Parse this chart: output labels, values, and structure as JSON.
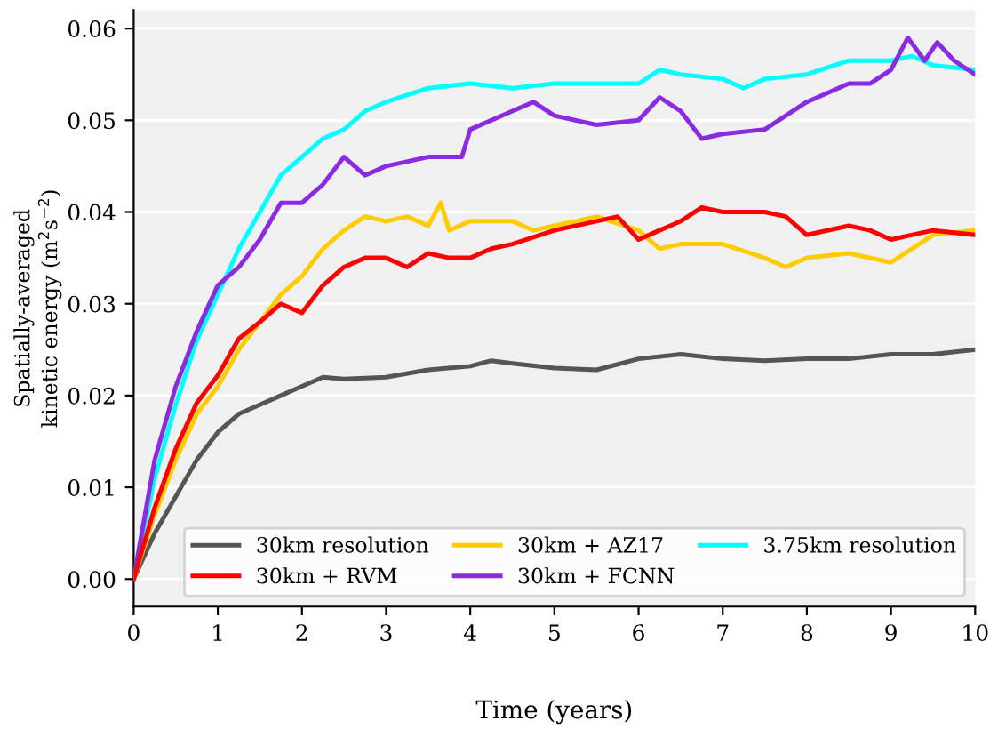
{
  "chart_data": {
    "type": "line",
    "xlabel": "Time (years)",
    "ylabel": "Spatially-averaged\nkinetic energy (m$^{2}$s$^{−2}$)",
    "xlim": [
      0,
      10
    ],
    "ylim": [
      -0.003,
      0.062
    ],
    "xticks": [
      0,
      1,
      2,
      3,
      4,
      5,
      6,
      7,
      8,
      9,
      10
    ],
    "yticks": [
      {
        "value": 0,
        "label": "0.00"
      },
      {
        "value": 0.01,
        "label": "0.01"
      },
      {
        "value": 0.02,
        "label": "0.02"
      },
      {
        "value": 0.03,
        "label": "0.03"
      },
      {
        "value": 0.04,
        "label": "0.04"
      },
      {
        "value": 0.05,
        "label": "0.05"
      },
      {
        "value": 0.06,
        "label": "0.06"
      }
    ],
    "grid": "y",
    "legend": "bottom right",
    "marker": "none",
    "line_style": "solid",
    "series": [
      {
        "name": "30km resolution",
        "color": "#555555",
        "x": [
          0,
          0.25,
          0.5,
          0.75,
          1,
          1.25,
          1.5,
          1.75,
          2,
          2.25,
          2.5,
          3,
          3.5,
          4,
          4.25,
          4.5,
          5,
          5.5,
          6,
          6.5,
          7,
          7.5,
          8,
          8.5,
          9,
          9.5,
          10
        ],
        "values": [
          0,
          0.005,
          0.009,
          0.013,
          0.016,
          0.018,
          0.019,
          0.02,
          0.021,
          0.022,
          0.0218,
          0.022,
          0.0228,
          0.0232,
          0.0238,
          0.0235,
          0.023,
          0.0228,
          0.024,
          0.0245,
          0.024,
          0.0238,
          0.024,
          0.024,
          0.0245,
          0.0245,
          0.025
        ]
      },
      {
        "name": "30km + RVM",
        "color": "#ff0000",
        "x": [
          0,
          0.25,
          0.5,
          0.75,
          1,
          1.25,
          1.5,
          1.75,
          2,
          2.25,
          2.5,
          2.75,
          3,
          3.25,
          3.5,
          3.75,
          4,
          4.25,
          4.5,
          5,
          5.5,
          5.75,
          6,
          6.25,
          6.5,
          6.75,
          7,
          7.5,
          7.75,
          8,
          8.5,
          8.75,
          9,
          9.5,
          10
        ],
        "values": [
          0,
          0.0078,
          0.0142,
          0.0192,
          0.0222,
          0.0262,
          0.028,
          0.03,
          0.029,
          0.032,
          0.034,
          0.035,
          0.035,
          0.034,
          0.0355,
          0.035,
          0.035,
          0.036,
          0.0365,
          0.038,
          0.039,
          0.0395,
          0.037,
          0.038,
          0.039,
          0.0405,
          0.04,
          0.04,
          0.0395,
          0.0375,
          0.0385,
          0.038,
          0.037,
          0.038,
          0.0375
        ]
      },
      {
        "name": "30km + AZ17",
        "color": "#ffcc00",
        "x": [
          0,
          0.25,
          0.5,
          0.75,
          1,
          1.25,
          1.5,
          1.75,
          2,
          2.25,
          2.5,
          2.75,
          3,
          3.25,
          3.5,
          3.65,
          3.75,
          4,
          4.5,
          4.75,
          5,
          5.25,
          5.5,
          6,
          6.25,
          6.5,
          7,
          7.5,
          7.75,
          8,
          8.5,
          9,
          9.25,
          9.5,
          10
        ],
        "values": [
          0,
          0.007,
          0.013,
          0.018,
          0.021,
          0.025,
          0.028,
          0.031,
          0.033,
          0.036,
          0.038,
          0.0395,
          0.039,
          0.0395,
          0.0385,
          0.041,
          0.038,
          0.039,
          0.039,
          0.038,
          0.0385,
          0.039,
          0.0395,
          0.038,
          0.036,
          0.0365,
          0.0365,
          0.035,
          0.034,
          0.035,
          0.0355,
          0.0345,
          0.036,
          0.0375,
          0.038
        ]
      },
      {
        "name": "30km + FCNN",
        "color": "#8a2be2",
        "x": [
          0,
          0.25,
          0.5,
          0.75,
          1,
          1.25,
          1.5,
          1.75,
          2,
          2.25,
          2.5,
          2.75,
          3,
          3.5,
          3.9,
          4,
          4.5,
          4.75,
          5,
          5.5,
          6,
          6.25,
          6.5,
          6.75,
          7,
          7.5,
          8,
          8.5,
          8.75,
          9,
          9.2,
          9.4,
          9.55,
          9.75,
          10
        ],
        "values": [
          0,
          0.013,
          0.021,
          0.027,
          0.032,
          0.034,
          0.037,
          0.041,
          0.041,
          0.043,
          0.046,
          0.044,
          0.045,
          0.046,
          0.046,
          0.049,
          0.051,
          0.052,
          0.0505,
          0.0495,
          0.05,
          0.0525,
          0.051,
          0.048,
          0.0485,
          0.049,
          0.052,
          0.054,
          0.054,
          0.0555,
          0.059,
          0.0565,
          0.0585,
          0.0565,
          0.055
        ]
      },
      {
        "name": "3.75km resolution",
        "color": "#00ffff",
        "x": [
          0,
          0.25,
          0.5,
          0.75,
          1,
          1.25,
          1.5,
          1.75,
          2,
          2.25,
          2.5,
          2.75,
          3,
          3.5,
          4,
          4.5,
          5,
          5.5,
          6,
          6.25,
          6.5,
          7,
          7.25,
          7.5,
          8,
          8.5,
          9,
          9.25,
          9.5,
          10
        ],
        "values": [
          0,
          0.011,
          0.019,
          0.026,
          0.031,
          0.036,
          0.04,
          0.044,
          0.046,
          0.048,
          0.049,
          0.051,
          0.052,
          0.0535,
          0.054,
          0.0535,
          0.054,
          0.054,
          0.054,
          0.0555,
          0.055,
          0.0545,
          0.0535,
          0.0545,
          0.055,
          0.0565,
          0.0565,
          0.057,
          0.056,
          0.0555
        ]
      }
    ]
  }
}
